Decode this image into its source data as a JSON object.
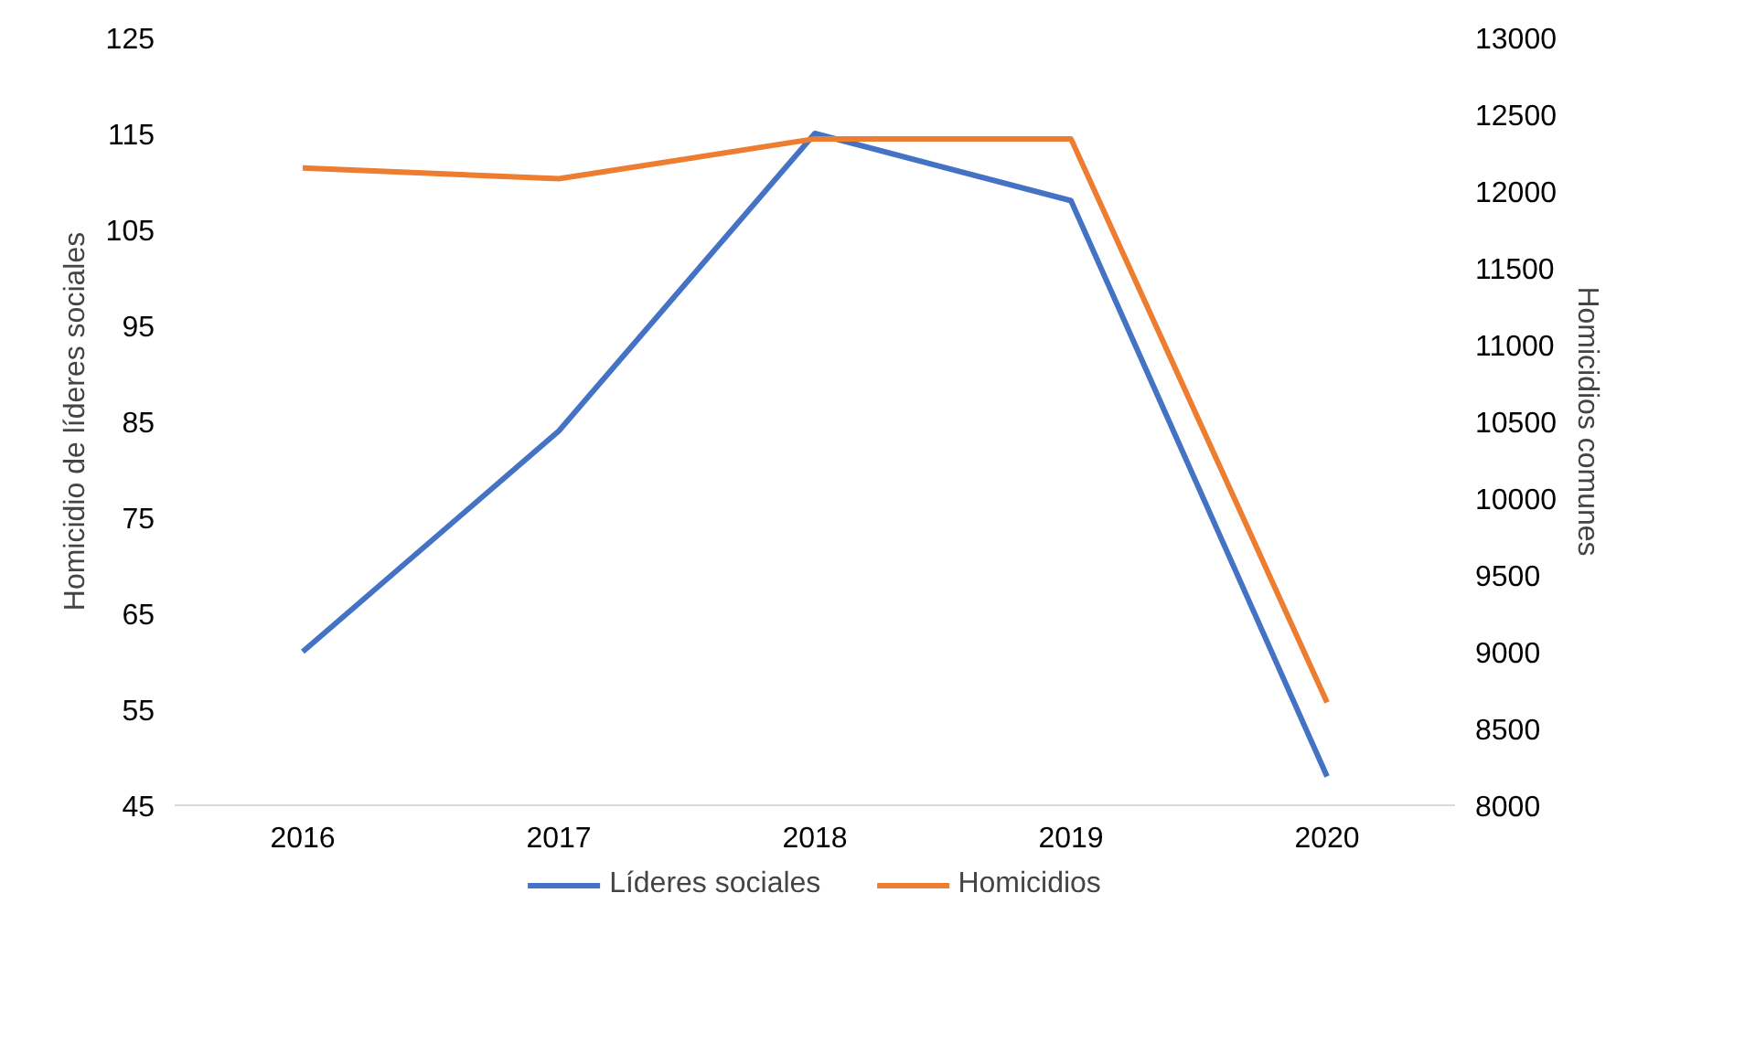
{
  "chart_data": {
    "type": "line",
    "ylabel": "Homicidio de líderes sociales",
    "y2label": "Homicidios comunes",
    "categories": [
      "2016",
      "2017",
      "2018",
      "2019",
      "2020"
    ],
    "series": [
      {
        "name": "Líderes sociales",
        "color": "#4472c4",
        "values": [
          61,
          84,
          115,
          108,
          48
        ]
      },
      {
        "name": "Homicidios",
        "color": "#ed7d31",
        "axis": "y2",
        "values": [
          12150,
          12080,
          12340,
          12340,
          8670
        ]
      }
    ],
    "ylim": [
      45,
      125
    ],
    "yticks": [
      45,
      55,
      65,
      75,
      85,
      95,
      105,
      115,
      125
    ],
    "y2lim": [
      8000,
      13000
    ],
    "y2ticks": [
      8000,
      8500,
      9000,
      9500,
      10000,
      10500,
      11000,
      11500,
      12000,
      12500,
      13000
    ],
    "grid": false,
    "legend": "bottom",
    "marker": "none",
    "line_style": "solid"
  }
}
